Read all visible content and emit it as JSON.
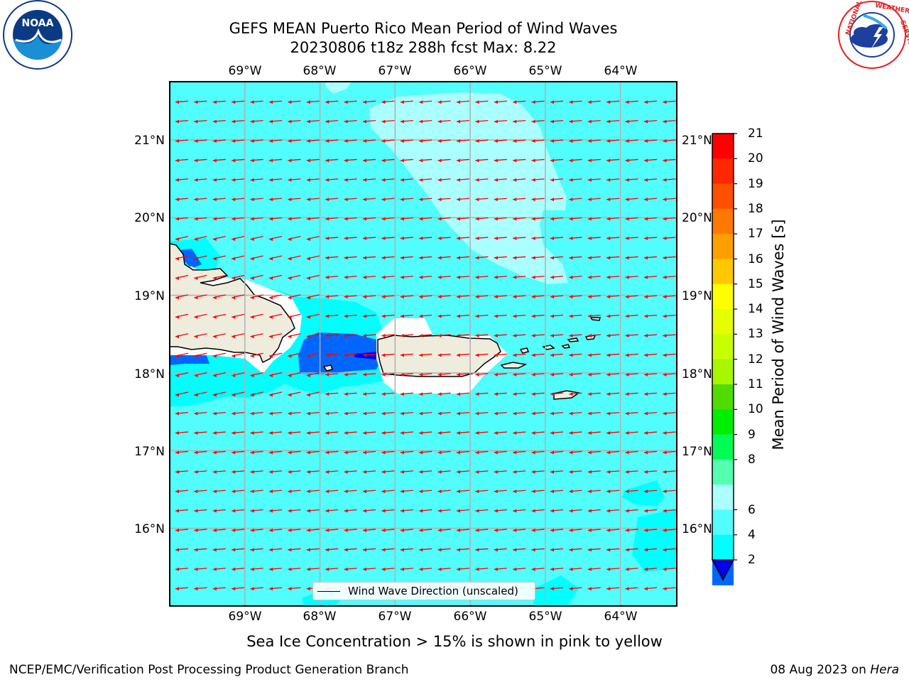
{
  "header": {
    "title_line1": "GEFS MEAN Puerto Rico Mean Period of Wind Waves",
    "title_line2": "20230806 t18z 288h fcst   Max: 8.22",
    "noaa_logo_text": "NOAA",
    "noaa_logo_ring": "NATIONAL OCEANIC AND ATMOSPHERIC ADMINISTRATION · U.S. DEPARTMENT OF COMMERCE",
    "nws_logo_ring": "NATIONAL WEATHER SERVICE"
  },
  "map": {
    "lon_labels": [
      "69°W",
      "68°W",
      "67°W",
      "66°W",
      "65°W",
      "64°W"
    ],
    "lat_labels": [
      "21°N",
      "20°N",
      "19°N",
      "18°N",
      "17°N",
      "16°N"
    ],
    "lon_range": [
      -70.0,
      -63.25
    ],
    "lat_range": [
      15.0,
      21.75
    ],
    "gridlines": true,
    "field_colors": {
      "period_2_4": "#0066ff",
      "period_4_6": "#00ffff",
      "period_6_8": "#52fdfd",
      "period_8_9": "#aaffff",
      "below_2": "#0000ee",
      "land": "#eeecdc",
      "arrows": "#ff0000"
    },
    "legend_label": "Wind Wave Direction (unscaled)"
  },
  "colorbar": {
    "label": "Mean Period of Wind Waves [s]",
    "ticks": [
      "21",
      "20",
      "19",
      "18",
      "17",
      "16",
      "15",
      "14",
      "13",
      "12",
      "11",
      "10",
      "9",
      "8",
      "6",
      "4",
      "2"
    ],
    "colors": [
      "#ff0000",
      "#ff2800",
      "#ff5000",
      "#ff7800",
      "#ffa000",
      "#ffc800",
      "#ffff00",
      "#e6ff00",
      "#c8ff00",
      "#aaf500",
      "#50dc00",
      "#00ee00",
      "#00fd56",
      "#54ffb0",
      "#aaffff",
      "#52fdfd",
      "#00ffff",
      "#0066ff"
    ],
    "extend_color": "#0000ee"
  },
  "notes": {
    "ice_note": "Sea Ice Concentration > 15% is shown in pink to yellow",
    "footer_left": "NCEP/EMC/Verification Post Processing Product Generation Branch",
    "footer_date": "08 Aug 2023 on ",
    "footer_machine": "Hera"
  }
}
